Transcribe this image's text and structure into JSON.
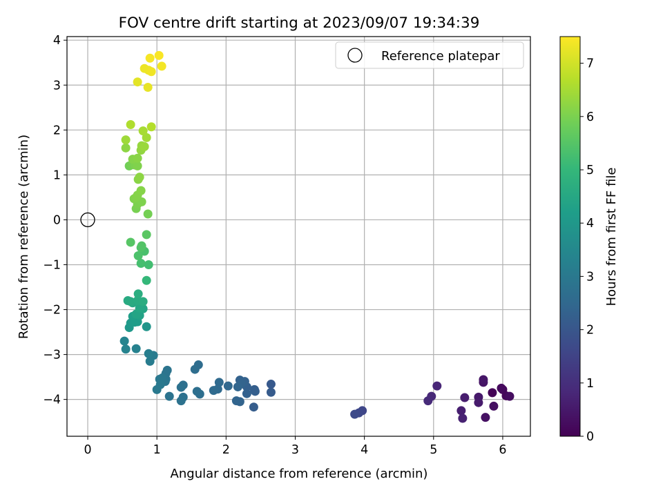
{
  "chart_data": {
    "type": "scatter",
    "title": "FOV centre drift starting at 2023/09/07 19:34:39",
    "xlabel": "Angular distance from reference (arcmin)",
    "ylabel": "Rotation from reference (arcmin)",
    "xlim": [
      -0.3,
      6.4
    ],
    "ylim": [
      -4.82,
      4.08
    ],
    "xticks": [
      0,
      1,
      2,
      3,
      4,
      5,
      6
    ],
    "yticks": [
      -4,
      -3,
      -2,
      -1,
      0,
      1,
      2,
      3,
      4
    ],
    "grid": true,
    "legend": {
      "position": "top-right",
      "entries": [
        "Reference platepar"
      ]
    },
    "reference_point": {
      "x": 0,
      "y": 0,
      "label": "Reference platepar"
    },
    "colorbar": {
      "label": "Hours from first FF file",
      "min": 0,
      "max": 7.5,
      "ticks": [
        0,
        1,
        2,
        3,
        4,
        5,
        6,
        7
      ],
      "colormap": "viridis"
    },
    "points": [
      {
        "x": 5.85,
        "y": -3.85,
        "t": 0.05
      },
      {
        "x": 6.0,
        "y": -3.78,
        "t": 0.1
      },
      {
        "x": 6.05,
        "y": -3.92,
        "t": 0.15
      },
      {
        "x": 5.98,
        "y": -3.75,
        "t": 0.2
      },
      {
        "x": 6.1,
        "y": -3.93,
        "t": 0.25
      },
      {
        "x": 5.87,
        "y": -4.15,
        "t": 0.3
      },
      {
        "x": 5.75,
        "y": -4.4,
        "t": 0.35
      },
      {
        "x": 5.72,
        "y": -3.62,
        "t": 0.4
      },
      {
        "x": 5.72,
        "y": -3.56,
        "t": 0.45
      },
      {
        "x": 5.65,
        "y": -3.95,
        "t": 0.5
      },
      {
        "x": 5.65,
        "y": -4.07,
        "t": 0.55
      },
      {
        "x": 5.45,
        "y": -3.96,
        "t": 0.6
      },
      {
        "x": 5.4,
        "y": -4.25,
        "t": 0.65
      },
      {
        "x": 5.42,
        "y": -4.42,
        "t": 0.7
      },
      {
        "x": 5.05,
        "y": -3.7,
        "t": 0.8
      },
      {
        "x": 4.97,
        "y": -3.93,
        "t": 0.85
      },
      {
        "x": 4.92,
        "y": -4.03,
        "t": 0.9
      },
      {
        "x": 3.97,
        "y": -4.25,
        "t": 1.6
      },
      {
        "x": 3.92,
        "y": -4.3,
        "t": 1.65
      },
      {
        "x": 3.86,
        "y": -4.33,
        "t": 1.7
      },
      {
        "x": 2.65,
        "y": -3.66,
        "t": 2.1
      },
      {
        "x": 2.65,
        "y": -3.84,
        "t": 2.15
      },
      {
        "x": 2.4,
        "y": -4.17,
        "t": 2.2
      },
      {
        "x": 2.41,
        "y": -3.78,
        "t": 2.22
      },
      {
        "x": 2.42,
        "y": -3.82,
        "t": 2.25
      },
      {
        "x": 2.3,
        "y": -3.72,
        "t": 2.28
      },
      {
        "x": 2.3,
        "y": -3.87,
        "t": 2.3
      },
      {
        "x": 2.27,
        "y": -3.6,
        "t": 2.33
      },
      {
        "x": 2.2,
        "y": -3.57,
        "t": 2.35
      },
      {
        "x": 2.22,
        "y": -3.65,
        "t": 2.38
      },
      {
        "x": 2.2,
        "y": -4.05,
        "t": 2.4
      },
      {
        "x": 2.15,
        "y": -4.03,
        "t": 2.43
      },
      {
        "x": 2.17,
        "y": -3.72,
        "t": 2.45
      },
      {
        "x": 2.03,
        "y": -3.7,
        "t": 2.5
      },
      {
        "x": 1.9,
        "y": -3.62,
        "t": 2.55
      },
      {
        "x": 1.88,
        "y": -3.77,
        "t": 2.58
      },
      {
        "x": 1.82,
        "y": -3.8,
        "t": 2.6
      },
      {
        "x": 1.6,
        "y": -3.23,
        "t": 2.65
      },
      {
        "x": 1.55,
        "y": -3.33,
        "t": 2.68
      },
      {
        "x": 1.62,
        "y": -3.88,
        "t": 2.7
      },
      {
        "x": 1.58,
        "y": -3.82,
        "t": 2.72
      },
      {
        "x": 1.38,
        "y": -3.68,
        "t": 2.75
      },
      {
        "x": 1.35,
        "y": -3.73,
        "t": 2.78
      },
      {
        "x": 1.38,
        "y": -3.95,
        "t": 2.8
      },
      {
        "x": 1.35,
        "y": -4.03,
        "t": 2.82
      },
      {
        "x": 1.18,
        "y": -3.93,
        "t": 2.85
      },
      {
        "x": 1.15,
        "y": -3.35,
        "t": 2.88
      },
      {
        "x": 1.13,
        "y": -3.42,
        "t": 2.9
      },
      {
        "x": 1.13,
        "y": -3.55,
        "t": 2.92
      },
      {
        "x": 1.12,
        "y": -3.6,
        "t": 2.95
      },
      {
        "x": 1.08,
        "y": -3.52,
        "t": 2.98
      },
      {
        "x": 1.04,
        "y": -3.55,
        "t": 3.0
      },
      {
        "x": 1.05,
        "y": -3.67,
        "t": 3.03
      },
      {
        "x": 1.0,
        "y": -3.78,
        "t": 3.05
      },
      {
        "x": 0.95,
        "y": -3.02,
        "t": 3.1
      },
      {
        "x": 0.9,
        "y": -3.15,
        "t": 3.15
      },
      {
        "x": 0.88,
        "y": -2.98,
        "t": 3.2
      },
      {
        "x": 0.7,
        "y": -2.87,
        "t": 3.3
      },
      {
        "x": 0.55,
        "y": -2.88,
        "t": 3.35
      },
      {
        "x": 0.53,
        "y": -2.7,
        "t": 3.4
      },
      {
        "x": 0.85,
        "y": -2.38,
        "t": 3.9
      },
      {
        "x": 0.6,
        "y": -2.4,
        "t": 4.0
      },
      {
        "x": 0.62,
        "y": -2.3,
        "t": 4.05
      },
      {
        "x": 0.72,
        "y": -2.27,
        "t": 4.1
      },
      {
        "x": 0.68,
        "y": -2.28,
        "t": 4.15
      },
      {
        "x": 0.65,
        "y": -2.15,
        "t": 4.2
      },
      {
        "x": 0.75,
        "y": -2.13,
        "t": 4.3
      },
      {
        "x": 0.7,
        "y": -2.1,
        "t": 4.35
      },
      {
        "x": 0.8,
        "y": -1.98,
        "t": 4.4
      },
      {
        "x": 0.75,
        "y": -1.97,
        "t": 4.45
      },
      {
        "x": 0.65,
        "y": -1.85,
        "t": 4.5
      },
      {
        "x": 0.58,
        "y": -1.8,
        "t": 4.55
      },
      {
        "x": 0.62,
        "y": -1.82,
        "t": 4.58
      },
      {
        "x": 0.72,
        "y": -1.8,
        "t": 4.6
      },
      {
        "x": 0.8,
        "y": -1.82,
        "t": 4.62
      },
      {
        "x": 0.73,
        "y": -1.65,
        "t": 4.65
      },
      {
        "x": 0.85,
        "y": -1.35,
        "t": 5.0
      },
      {
        "x": 0.88,
        "y": -1.0,
        "t": 5.2
      },
      {
        "x": 0.77,
        "y": -0.97,
        "t": 5.25
      },
      {
        "x": 0.82,
        "y": -0.7,
        "t": 5.3
      },
      {
        "x": 0.73,
        "y": -0.8,
        "t": 5.35
      },
      {
        "x": 0.77,
        "y": -0.62,
        "t": 5.4
      },
      {
        "x": 0.78,
        "y": -0.58,
        "t": 5.45
      },
      {
        "x": 0.62,
        "y": -0.5,
        "t": 5.5
      },
      {
        "x": 0.85,
        "y": -0.33,
        "t": 5.55
      },
      {
        "x": 0.87,
        "y": 0.13,
        "t": 5.9
      },
      {
        "x": 0.7,
        "y": 0.25,
        "t": 5.95
      },
      {
        "x": 0.72,
        "y": 0.35,
        "t": 6.0
      },
      {
        "x": 0.78,
        "y": 0.4,
        "t": 6.02
      },
      {
        "x": 0.67,
        "y": 0.47,
        "t": 6.05
      },
      {
        "x": 0.7,
        "y": 0.5,
        "t": 6.08
      },
      {
        "x": 0.72,
        "y": 0.55,
        "t": 6.1
      },
      {
        "x": 0.77,
        "y": 0.65,
        "t": 6.12
      },
      {
        "x": 0.73,
        "y": 0.9,
        "t": 6.15
      },
      {
        "x": 0.75,
        "y": 0.95,
        "t": 6.2
      },
      {
        "x": 0.6,
        "y": 1.2,
        "t": 5.85
      },
      {
        "x": 0.63,
        "y": 1.22,
        "t": 5.9
      },
      {
        "x": 0.68,
        "y": 1.22,
        "t": 6.0
      },
      {
        "x": 0.72,
        "y": 1.2,
        "t": 6.05
      },
      {
        "x": 0.65,
        "y": 1.35,
        "t": 6.1
      },
      {
        "x": 0.72,
        "y": 1.37,
        "t": 6.15
      },
      {
        "x": 0.55,
        "y": 1.6,
        "t": 6.2
      },
      {
        "x": 0.77,
        "y": 1.55,
        "t": 6.25
      },
      {
        "x": 0.78,
        "y": 1.65,
        "t": 6.3
      },
      {
        "x": 0.82,
        "y": 1.63,
        "t": 6.35
      },
      {
        "x": 0.55,
        "y": 1.78,
        "t": 6.4
      },
      {
        "x": 0.85,
        "y": 1.83,
        "t": 6.45
      },
      {
        "x": 0.8,
        "y": 1.98,
        "t": 6.5
      },
      {
        "x": 0.62,
        "y": 2.12,
        "t": 6.6
      },
      {
        "x": 0.92,
        "y": 2.07,
        "t": 6.65
      },
      {
        "x": 0.72,
        "y": 3.07,
        "t": 7.2
      },
      {
        "x": 0.87,
        "y": 2.95,
        "t": 7.25
      },
      {
        "x": 0.82,
        "y": 3.37,
        "t": 7.3
      },
      {
        "x": 0.88,
        "y": 3.33,
        "t": 7.32
      },
      {
        "x": 0.92,
        "y": 3.3,
        "t": 7.35
      },
      {
        "x": 1.07,
        "y": 3.42,
        "t": 7.38
      },
      {
        "x": 0.9,
        "y": 3.6,
        "t": 7.42
      },
      {
        "x": 1.03,
        "y": 3.66,
        "t": 7.45
      }
    ]
  }
}
